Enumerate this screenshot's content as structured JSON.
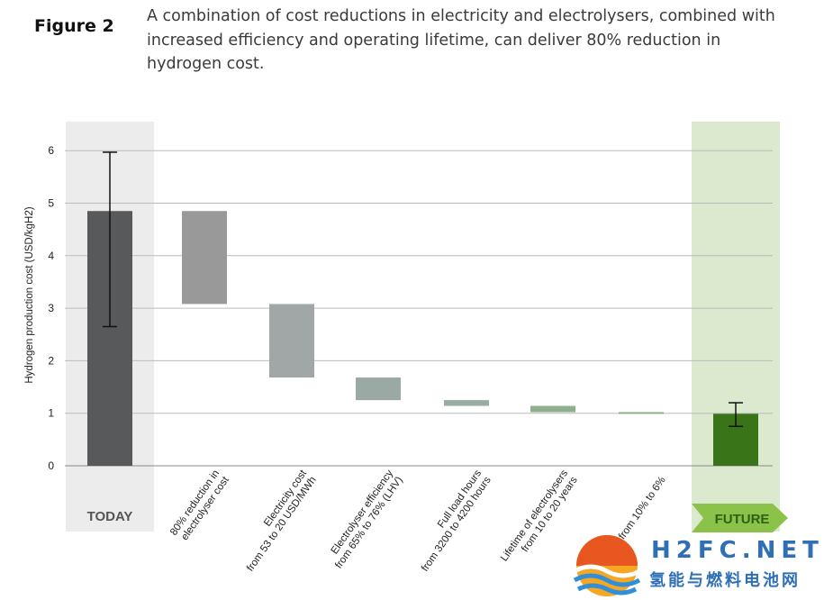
{
  "figure": {
    "label": "Figure 2",
    "caption": "A combination of cost reductions in electricity and electrolysers, combined with increased efficiency and operating lifetime, can deliver 80% reduction in hydrogen cost."
  },
  "chart_data": {
    "type": "bar",
    "subtype": "waterfall",
    "ylabel": "Hydrogen production cost (USD/kgH2)",
    "ylim": [
      0,
      6.5
    ],
    "yticks": [
      0,
      1,
      2,
      3,
      4,
      5,
      6
    ],
    "grid": true,
    "categories": [
      "TODAY",
      "80% reduction in electrolyser cost",
      "Electricity cost from 53 to 20 USD/MWh",
      "Electrolyser efficiency from 65% to 76% (LHV)",
      "Full load hours from 3200 to 4200 hours",
      "Lifetime of electrolysers from 10 to 20 years",
      "from 10% to 6%",
      "FUTURE"
    ],
    "tick_labels": [
      "",
      [
        "80% reduction in",
        "electrolyser cost"
      ],
      [
        "Electricity cost",
        "from 53 to 20 USD/MWh"
      ],
      [
        "Electrolyser efficiency",
        "from 65% to 76% (LHV)"
      ],
      [
        "Full load hours",
        "from 3200 to 4200 hours"
      ],
      [
        "Lifetime of electrolysers",
        "from 10 to 20 years"
      ],
      [
        "from 10% to 6%"
      ],
      ""
    ],
    "bars": [
      {
        "start": 0,
        "end": 4.85,
        "error": [
          2.65,
          5.97
        ],
        "color": "#58595b"
      },
      {
        "start": 3.08,
        "end": 4.85,
        "color": "#999999"
      },
      {
        "start": 1.68,
        "end": 3.08,
        "color": "#a0a7a6"
      },
      {
        "start": 1.25,
        "end": 1.68,
        "color": "#9aa9a3"
      },
      {
        "start": 1.14,
        "end": 1.25,
        "color": "#97ada0"
      },
      {
        "start": 1.02,
        "end": 1.14,
        "color": "#8fb08f"
      },
      {
        "start": 0.99,
        "end": 1.02,
        "color": "#86ad80"
      },
      {
        "start": 0,
        "end": 0.99,
        "error": [
          0.75,
          1.2
        ],
        "color": "#3a7418"
      }
    ],
    "bands": {
      "today": {
        "label": "TODAY",
        "color": "#ececec",
        "text_color": "#555555"
      },
      "future": {
        "label": "FUTURE",
        "color": "#dbeacf",
        "arrow_color": "#8bc34a",
        "text_color": "#2f5f12"
      }
    }
  },
  "watermark": {
    "text_en": "H2FC.NET",
    "text_cn": "氢能与燃料电池网"
  }
}
